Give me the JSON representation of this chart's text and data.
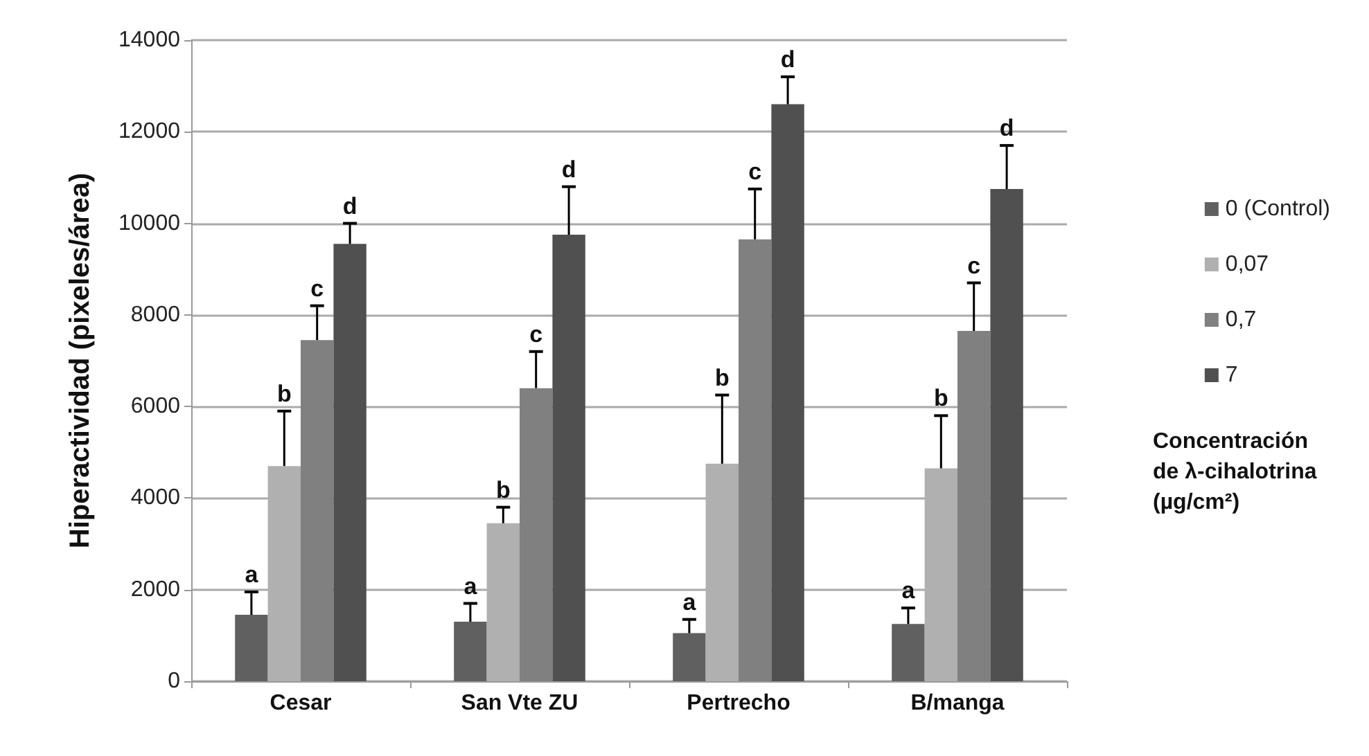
{
  "chart_data": {
    "type": "bar",
    "ylabel": "Hiperactividad (pixeles/área)",
    "legend_title": "Concentración de λ-cihalotrina (µg/cm²)",
    "categories": [
      "Cesar",
      "San Vte ZU",
      "Pertrecho",
      "B/manga"
    ],
    "series": [
      {
        "name": "0 (Control)",
        "color": "#606060",
        "values": [
          1450,
          1300,
          1050,
          1250
        ],
        "errors": [
          [
            1450,
            1950
          ],
          [
            1300,
            1700
          ],
          [
            1050,
            1350
          ],
          [
            1250,
            1600
          ]
        ]
      },
      {
        "name": "0,07",
        "color": "#b0b0b0",
        "values": [
          4700,
          3450,
          4750,
          4650
        ],
        "errors": [
          [
            4700,
            5900
          ],
          [
            3450,
            3800
          ],
          [
            4750,
            6250
          ],
          [
            4650,
            5800
          ]
        ]
      },
      {
        "name": "0,7",
        "color": "#808080",
        "values": [
          7450,
          6400,
          9650,
          7650
        ],
        "errors": [
          [
            7450,
            8200
          ],
          [
            6400,
            7200
          ],
          [
            9650,
            10750
          ],
          [
            7650,
            8700
          ]
        ]
      },
      {
        "name": "7",
        "color": "#505050",
        "values": [
          9550,
          9750,
          12600,
          10750
        ],
        "errors": [
          [
            9550,
            10000
          ],
          [
            9750,
            10800
          ],
          [
            12600,
            13200
          ],
          [
            10750,
            11700
          ]
        ]
      }
    ],
    "ylim": [
      0,
      14000
    ],
    "yticks": [
      0,
      2000,
      4000,
      6000,
      8000,
      10000,
      12000,
      14000
    ],
    "grid": "y",
    "legend": "right",
    "annotations": [
      "a",
      "b",
      "c",
      "d",
      "a",
      "b",
      "c",
      "d",
      "a",
      "b",
      "c",
      "d",
      "a",
      "b",
      "c",
      "d"
    ]
  }
}
